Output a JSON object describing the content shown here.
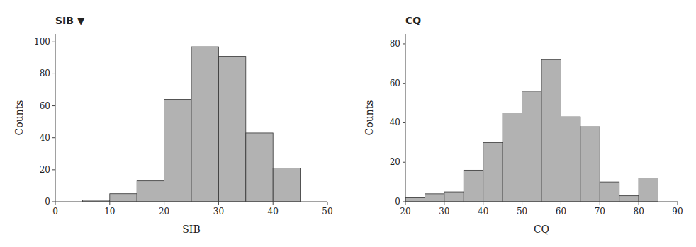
{
  "chart_data": [
    {
      "type": "histogram",
      "title": "SIB ▼",
      "xlabel": "SIB",
      "ylabel": "Counts",
      "bins": [
        0,
        5,
        10,
        15,
        20,
        25,
        30,
        35,
        40,
        45,
        50
      ],
      "values": [
        0,
        1,
        5,
        13,
        64,
        97,
        91,
        43,
        21,
        0
      ],
      "xlim": [
        0,
        50
      ],
      "ylim": [
        0,
        105
      ],
      "xticks": [
        0,
        10,
        20,
        30,
        40,
        50
      ],
      "yticks": [
        0,
        20,
        40,
        60,
        80,
        100
      ],
      "color": "#b2b2b2",
      "grid": false
    },
    {
      "type": "histogram",
      "title": "CQ",
      "xlabel": "CQ",
      "ylabel": "Counts",
      "bins": [
        20,
        25,
        30,
        35,
        40,
        45,
        50,
        55,
        60,
        65,
        70,
        75,
        80,
        85,
        90
      ],
      "values": [
        2,
        4,
        5,
        16,
        30,
        45,
        56,
        72,
        43,
        38,
        10,
        3,
        12,
        0
      ],
      "xlim": [
        20,
        90
      ],
      "ylim": [
        0,
        85
      ],
      "xticks": [
        20,
        30,
        40,
        50,
        60,
        70,
        80,
        90
      ],
      "yticks": [
        0,
        20,
        40,
        60,
        80
      ],
      "color": "#b2b2b2",
      "grid": false
    }
  ]
}
